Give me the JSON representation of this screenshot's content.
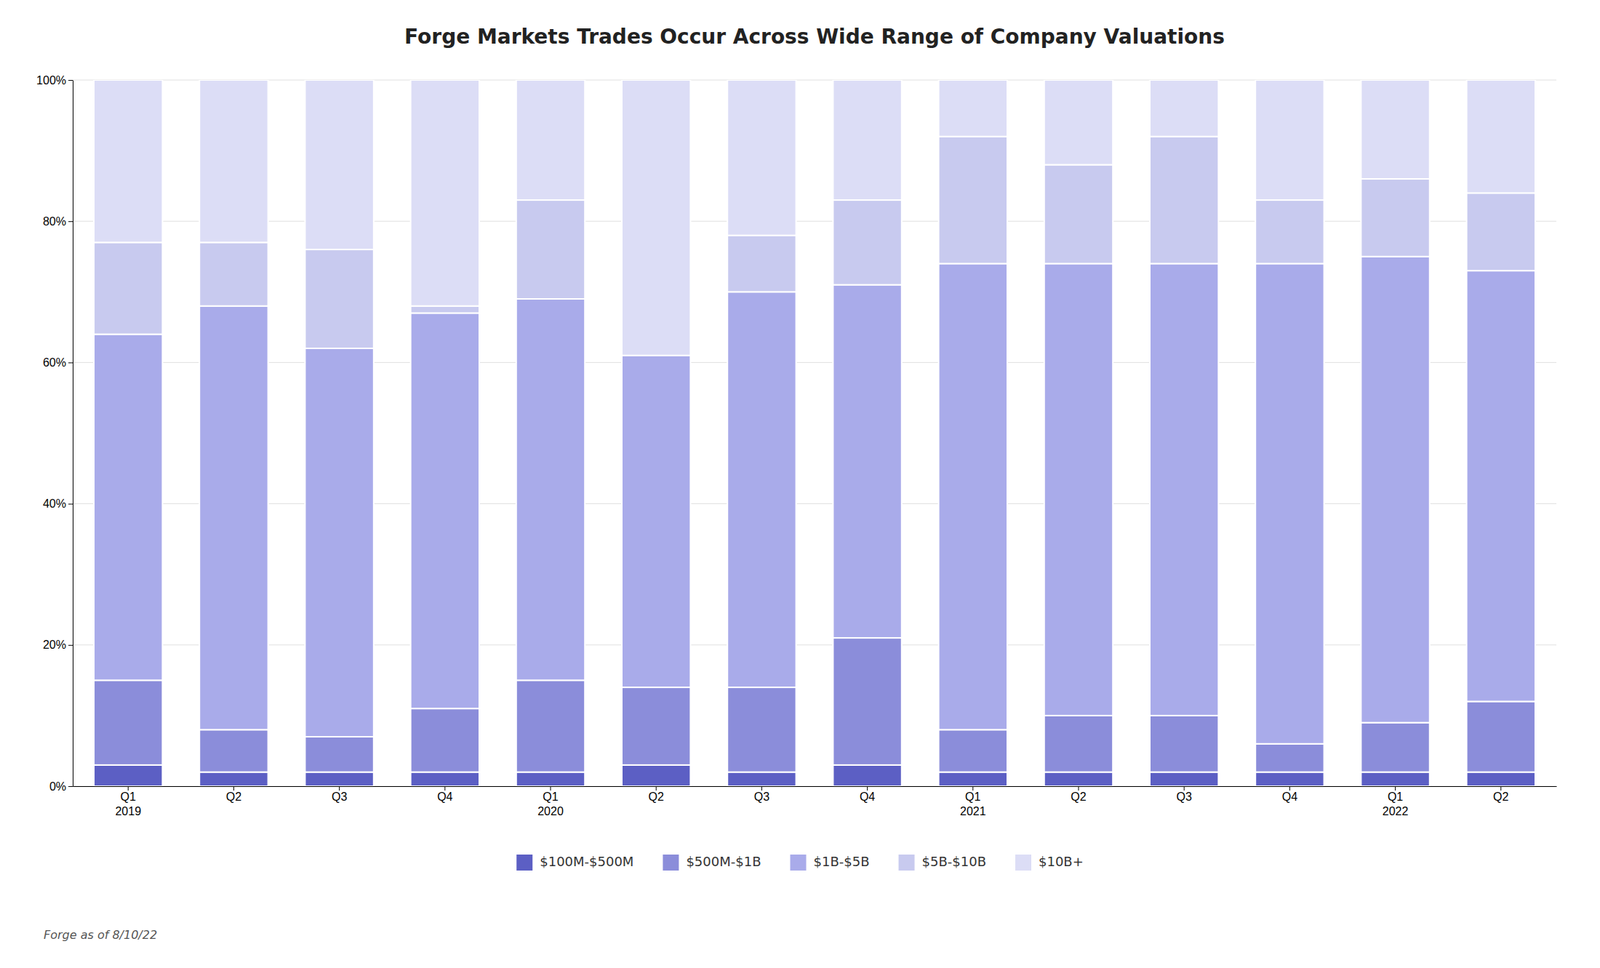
{
  "chart_data": {
    "type": "bar",
    "title": "Forge Markets Trades Occur Across Wide Range of Company Valuations",
    "categories": [
      "Q1\n2019",
      "Q2",
      "Q3",
      "Q4",
      "Q1\n2020",
      "Q2",
      "Q3",
      "Q4",
      "Q1\n2021",
      "Q2",
      "Q3",
      "Q4",
      "Q1\n2022",
      "Q2"
    ],
    "series": [
      {
        "name": "$100M-$500M",
        "color": "#5c5fc4",
        "values": [
          3,
          2,
          2,
          2,
          2,
          3,
          2,
          3,
          2,
          2,
          2,
          2,
          2,
          2
        ]
      },
      {
        "name": "$500M-$1B",
        "color": "#8b8dda",
        "values": [
          12,
          6,
          5,
          9,
          13,
          11,
          12,
          18,
          6,
          8,
          8,
          4,
          7,
          10
        ]
      },
      {
        "name": "$1B-$5B",
        "color": "#a9abea",
        "values": [
          49,
          60,
          55,
          56,
          54,
          47,
          56,
          50,
          66,
          64,
          64,
          68,
          66,
          61
        ]
      },
      {
        "name": "$5B-$10B",
        "color": "#c8caef",
        "values": [
          13,
          9,
          14,
          1,
          14,
          0,
          8,
          12,
          18,
          14,
          18,
          9,
          11,
          11
        ]
      },
      {
        "name": "$10B+",
        "color": "#dcddf6",
        "values": [
          23,
          23,
          24,
          32,
          17,
          39,
          22,
          17,
          8,
          12,
          8,
          17,
          14,
          16
        ]
      }
    ],
    "stacked": true,
    "ylim": [
      0,
      100
    ],
    "yticks": [
      {
        "value": 0,
        "label": "0%"
      },
      {
        "value": 20,
        "label": "20%"
      },
      {
        "value": 40,
        "label": "40%"
      },
      {
        "value": 60,
        "label": "60%"
      },
      {
        "value": 80,
        "label": "80%"
      },
      {
        "value": 100,
        "label": "100%"
      }
    ],
    "grid": true,
    "legend": "bottom",
    "annotations": [
      "Forge as of 8/10/22"
    ]
  }
}
